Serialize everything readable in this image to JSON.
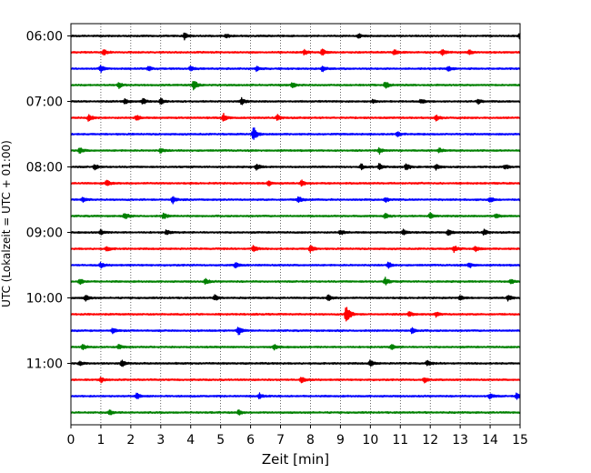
{
  "chart_data": {
    "type": "line",
    "title": "",
    "xlabel": "Zeit  [min]",
    "ylabel": "UTC (Lokalzeit = UTC + 01:00)",
    "xlim": [
      0,
      15
    ],
    "x_ticks": [
      0,
      1,
      2,
      3,
      4,
      5,
      6,
      7,
      8,
      9,
      10,
      11,
      12,
      13,
      14,
      15
    ],
    "y_tick_labels": [
      "06:00",
      "07:00",
      "08:00",
      "09:00",
      "10:00",
      "11:00"
    ],
    "traces_per_hour": 4,
    "trace_colors": [
      "#000000",
      "#ff0000",
      "#0000ff",
      "#008000"
    ],
    "grid": "vertical dotted",
    "legend": "none",
    "traces": [
      {
        "start": "06:00",
        "events": [
          [
            3.8,
            0.6
          ],
          [
            5.2,
            0.35
          ],
          [
            9.6,
            0.3
          ],
          [
            15.0,
            0.5
          ]
        ]
      },
      {
        "start": "06:15",
        "events": [
          [
            1.1,
            0.5
          ],
          [
            7.8,
            0.4
          ],
          [
            8.4,
            0.5
          ],
          [
            10.8,
            0.4
          ],
          [
            12.4,
            0.45
          ],
          [
            13.3,
            0.4
          ]
        ]
      },
      {
        "start": "06:30",
        "events": [
          [
            1.0,
            0.5
          ],
          [
            2.6,
            0.4
          ],
          [
            4.0,
            0.45
          ],
          [
            6.2,
            0.35
          ],
          [
            8.4,
            0.45
          ],
          [
            12.6,
            0.4
          ]
        ]
      },
      {
        "start": "06:45",
        "events": [
          [
            1.6,
            0.5
          ],
          [
            4.1,
            0.9
          ],
          [
            7.4,
            0.4
          ],
          [
            10.5,
            0.6
          ]
        ]
      },
      {
        "start": "07:00",
        "events": [
          [
            1.8,
            0.4
          ],
          [
            2.4,
            0.45
          ],
          [
            3.0,
            0.5
          ],
          [
            5.7,
            0.5
          ],
          [
            10.1,
            0.35
          ],
          [
            11.7,
            0.35
          ],
          [
            13.6,
            0.4
          ]
        ]
      },
      {
        "start": "07:15",
        "events": [
          [
            0.6,
            0.55
          ],
          [
            2.2,
            0.4
          ],
          [
            5.1,
            0.6
          ],
          [
            6.9,
            0.4
          ],
          [
            12.2,
            0.45
          ]
        ]
      },
      {
        "start": "07:30",
        "events": [
          [
            6.1,
            1.2
          ],
          [
            10.9,
            0.4
          ]
        ]
      },
      {
        "start": "07:45",
        "events": [
          [
            0.3,
            0.45
          ],
          [
            3.0,
            0.4
          ],
          [
            10.3,
            0.45
          ],
          [
            12.3,
            0.4
          ]
        ]
      },
      {
        "start": "08:00",
        "events": [
          [
            0.8,
            0.4
          ],
          [
            6.2,
            0.5
          ],
          [
            9.7,
            0.45
          ],
          [
            10.3,
            0.5
          ],
          [
            11.2,
            0.55
          ],
          [
            12.2,
            0.45
          ],
          [
            14.5,
            0.4
          ]
        ]
      },
      {
        "start": "08:15",
        "events": [
          [
            1.2,
            0.5
          ],
          [
            6.6,
            0.45
          ],
          [
            7.7,
            0.45
          ]
        ]
      },
      {
        "start": "08:30",
        "events": [
          [
            0.4,
            0.4
          ],
          [
            3.4,
            0.6
          ],
          [
            7.6,
            0.6
          ],
          [
            10.5,
            0.4
          ],
          [
            14.0,
            0.45
          ]
        ]
      },
      {
        "start": "08:45",
        "events": [
          [
            1.8,
            0.5
          ],
          [
            3.1,
            0.5
          ],
          [
            10.5,
            0.4
          ],
          [
            12.0,
            0.5
          ],
          [
            14.2,
            0.45
          ]
        ]
      },
      {
        "start": "09:00",
        "events": [
          [
            1.0,
            0.4
          ],
          [
            3.2,
            0.45
          ],
          [
            9.0,
            0.4
          ],
          [
            11.1,
            0.45
          ],
          [
            12.6,
            0.5
          ],
          [
            13.8,
            0.4
          ]
        ]
      },
      {
        "start": "09:15",
        "events": [
          [
            1.2,
            0.4
          ],
          [
            6.1,
            0.55
          ],
          [
            8.0,
            0.6
          ],
          [
            12.8,
            0.55
          ],
          [
            13.5,
            0.45
          ]
        ]
      },
      {
        "start": "09:30",
        "events": [
          [
            1.0,
            0.4
          ],
          [
            5.5,
            0.45
          ],
          [
            10.6,
            0.45
          ],
          [
            13.3,
            0.5
          ]
        ]
      },
      {
        "start": "09:45",
        "events": [
          [
            0.3,
            0.45
          ],
          [
            4.5,
            0.45
          ],
          [
            10.5,
            0.6
          ],
          [
            14.7,
            0.4
          ]
        ]
      },
      {
        "start": "10:00",
        "events": [
          [
            0.5,
            0.5
          ],
          [
            4.8,
            0.45
          ],
          [
            8.6,
            0.5
          ],
          [
            13.0,
            0.4
          ],
          [
            14.6,
            0.45
          ]
        ]
      },
      {
        "start": "10:15",
        "events": [
          [
            9.2,
            1.8
          ],
          [
            11.3,
            0.4
          ],
          [
            12.2,
            0.4
          ]
        ]
      },
      {
        "start": "10:30",
        "events": [
          [
            1.4,
            0.4
          ],
          [
            5.6,
            0.7
          ],
          [
            11.4,
            0.45
          ]
        ]
      },
      {
        "start": "10:45",
        "events": [
          [
            0.4,
            0.4
          ],
          [
            1.6,
            0.4
          ],
          [
            6.8,
            0.45
          ],
          [
            10.7,
            0.4
          ]
        ]
      },
      {
        "start": "11:00",
        "events": [
          [
            0.3,
            0.4
          ],
          [
            1.7,
            0.55
          ],
          [
            10.0,
            0.5
          ],
          [
            11.9,
            0.4
          ]
        ]
      },
      {
        "start": "11:15",
        "events": [
          [
            1.0,
            0.4
          ],
          [
            7.7,
            0.45
          ],
          [
            11.8,
            0.45
          ]
        ]
      },
      {
        "start": "11:30",
        "events": [
          [
            2.2,
            0.45
          ],
          [
            6.3,
            0.4
          ],
          [
            14.0,
            0.45
          ],
          [
            14.9,
            0.55
          ]
        ]
      },
      {
        "start": "11:45",
        "events": [
          [
            1.3,
            0.4
          ],
          [
            5.6,
            0.4
          ]
        ]
      }
    ]
  }
}
